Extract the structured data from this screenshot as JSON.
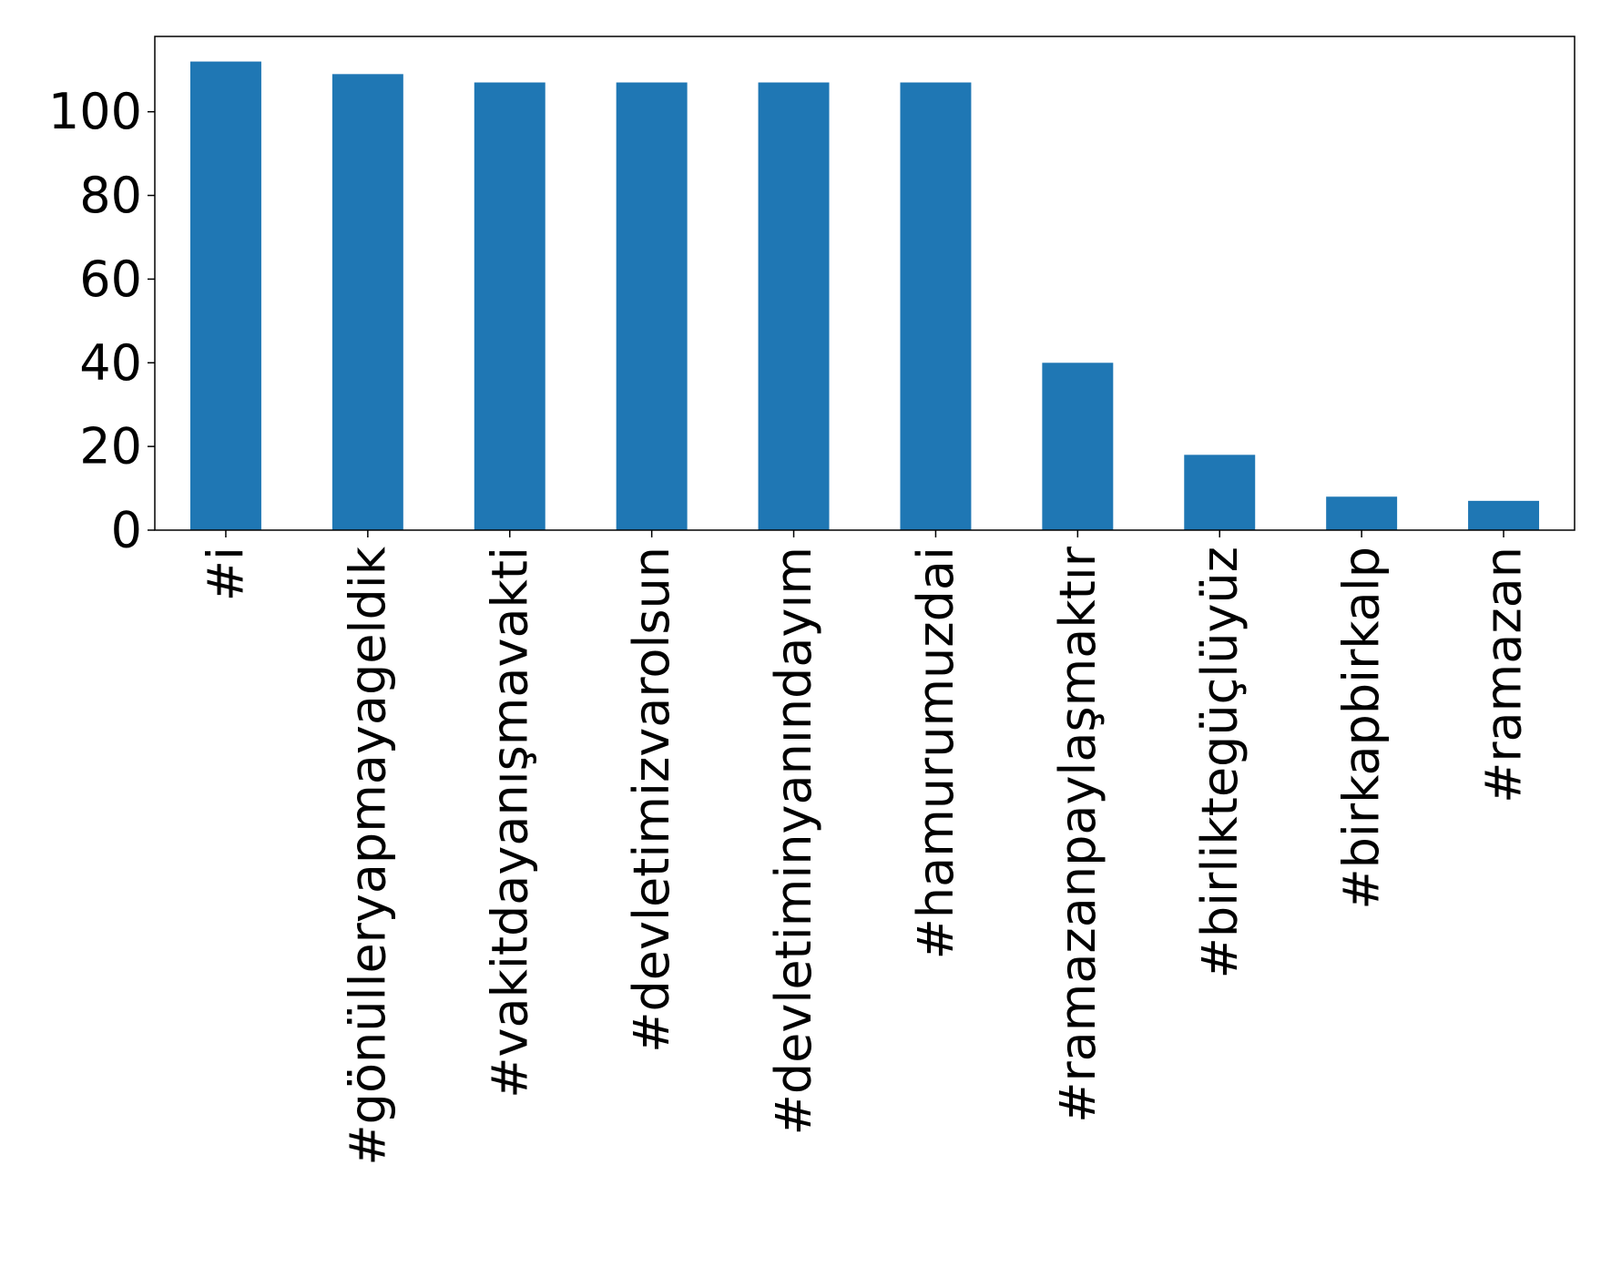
{
  "chart_data": {
    "type": "bar",
    "title": "",
    "xlabel": "",
    "ylabel": "",
    "categories": [
      "#i",
      "#gönülleryapmayageldik",
      "#vakitdayanışmavakti",
      "#devletimizvarolsun",
      "#devletiminyanındayım",
      "#hamurumuzdai",
      "#ramazanpaylaşmaktır",
      "#birliktegüçlüyüz",
      "#birkapbirkalp",
      "#ramazan"
    ],
    "values": [
      112,
      109,
      107,
      107,
      107,
      107,
      40,
      18,
      8,
      7
    ],
    "ylim": [
      0,
      118
    ],
    "yticks": [
      0,
      20,
      40,
      60,
      80,
      100
    ],
    "bar_color": "#1f77b4",
    "grid": false,
    "legend": "none"
  }
}
